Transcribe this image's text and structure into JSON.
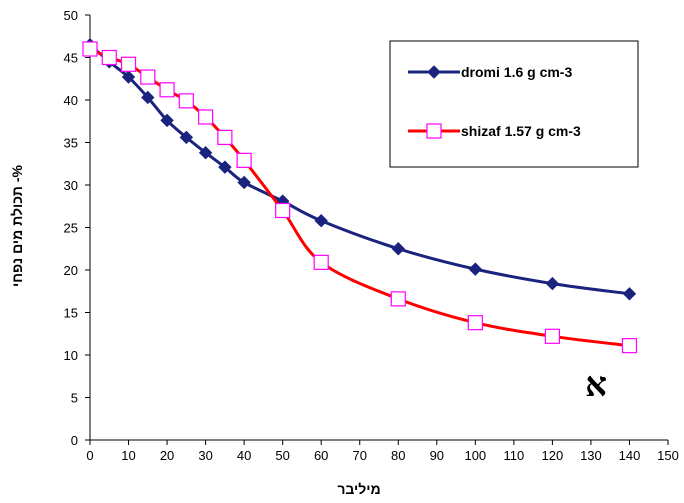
{
  "chart_data": {
    "type": "line",
    "title": "",
    "xlabel": "מיליבר",
    "ylabel": "תכולת מים נפחי -%",
    "xlim": [
      0,
      150
    ],
    "ylim": [
      0,
      50
    ],
    "xticks": [
      0,
      10,
      20,
      30,
      40,
      50,
      60,
      70,
      80,
      90,
      100,
      110,
      120,
      130,
      140,
      150
    ],
    "yticks": [
      0,
      5,
      10,
      15,
      20,
      25,
      30,
      35,
      40,
      45,
      50
    ],
    "grid": false,
    "legend_position": "top-right",
    "annotation": "א",
    "series": [
      {
        "name": "dromi 1.6 g cm-3",
        "color": "#1a237e",
        "marker": "filled-diamond",
        "x": [
          0,
          5,
          10,
          15,
          20,
          25,
          30,
          35,
          40,
          50,
          60,
          80,
          100,
          120,
          140
        ],
        "y": [
          46.5,
          44.5,
          42.7,
          40.3,
          37.6,
          35.6,
          33.8,
          32.1,
          30.3,
          28.1,
          25.8,
          22.5,
          20.1,
          18.4,
          17.2
        ]
      },
      {
        "name": "shizaf 1.57 g cm-3",
        "color": "#ff0000",
        "marker_color": "#ff00ff",
        "marker": "open-square",
        "x": [
          0,
          5,
          10,
          15,
          20,
          25,
          30,
          35,
          40,
          50,
          60,
          80,
          100,
          120,
          140
        ],
        "y": [
          46.0,
          45.0,
          44.2,
          42.7,
          41.2,
          39.9,
          38.0,
          35.6,
          32.9,
          27.0,
          20.9,
          16.6,
          13.8,
          12.2,
          11.1
        ]
      }
    ]
  }
}
